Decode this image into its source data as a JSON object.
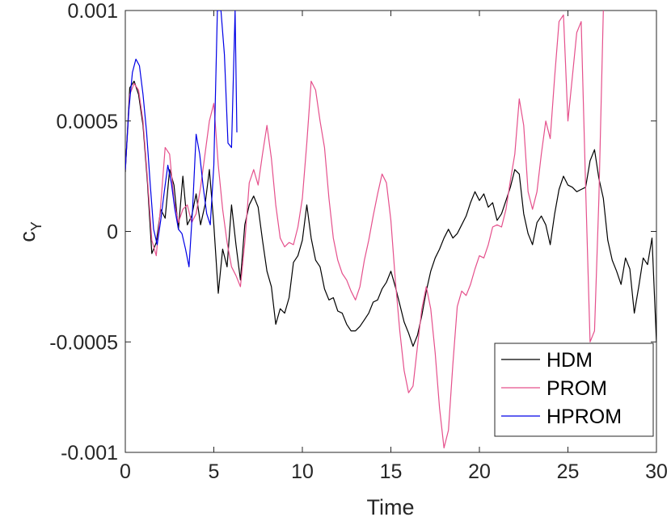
{
  "chart_data": {
    "type": "line",
    "title": "",
    "xlabel": "Time",
    "ylabel": "c",
    "ylabel_subscript": "Y",
    "xlim": [
      0,
      30
    ],
    "ylim": [
      -0.001,
      0.001
    ],
    "xticks": [
      0,
      5,
      10,
      15,
      20,
      25,
      30
    ],
    "xtick_labels": [
      "0",
      "5",
      "10",
      "15",
      "20",
      "25",
      "30"
    ],
    "yticks": [
      -0.001,
      -0.0005,
      0,
      0.0005,
      0.001
    ],
    "ytick_labels": [
      "-0.001",
      "-0.0005",
      "0",
      "0.0005",
      "0.001"
    ],
    "grid": false,
    "legend_position": "bottom-right",
    "series": [
      {
        "name": "HDM",
        "color": "#000000",
        "x": [
          0,
          0.25,
          0.5,
          0.75,
          1.0,
          1.25,
          1.5,
          1.75,
          2.0,
          2.25,
          2.5,
          2.75,
          3.0,
          3.25,
          3.5,
          3.75,
          4.0,
          4.25,
          4.5,
          4.75,
          5.0,
          5.25,
          5.5,
          5.75,
          6.0,
          6.25,
          6.5,
          6.75,
          7.0,
          7.25,
          7.5,
          7.75,
          8.0,
          8.25,
          8.5,
          8.75,
          9.0,
          9.25,
          9.5,
          9.75,
          10.0,
          10.25,
          10.5,
          10.75,
          11.0,
          11.25,
          11.5,
          11.75,
          12.0,
          12.25,
          12.5,
          12.75,
          13.0,
          13.25,
          13.5,
          13.75,
          14.0,
          14.25,
          14.5,
          14.75,
          15.0,
          15.25,
          15.5,
          15.75,
          16.0,
          16.25,
          16.5,
          16.75,
          17.0,
          17.25,
          17.5,
          17.75,
          18.0,
          18.25,
          18.5,
          18.75,
          19.0,
          19.25,
          19.5,
          19.75,
          20.0,
          20.25,
          20.5,
          20.75,
          21.0,
          21.25,
          21.5,
          21.75,
          22.0,
          22.25,
          22.5,
          22.75,
          23.0,
          23.25,
          23.5,
          23.75,
          24.0,
          24.25,
          24.5,
          24.75,
          25.0,
          25.25,
          25.5,
          25.75,
          26.0,
          26.25,
          26.5,
          26.75,
          27.0,
          27.25,
          27.5,
          27.75,
          28.0,
          28.25,
          28.5,
          28.75,
          29.0,
          29.25,
          29.5,
          29.75,
          30.0
        ],
        "y": [
          0.00027,
          0.00065,
          0.00068,
          0.00062,
          0.00048,
          0.00022,
          -0.0001,
          -5e-05,
          0.0001,
          6e-05,
          0.00028,
          0.00021,
          1e-05,
          0.00025,
          3e-05,
          7e-05,
          0.00017,
          3e-05,
          0.00012,
          0.00028,
          3e-05,
          -0.00028,
          -8e-05,
          -0.00016,
          0.00012,
          -6e-05,
          -0.00022,
          3e-05,
          0.00012,
          0.00016,
          0.00011,
          -4e-05,
          -0.00018,
          -0.00025,
          -0.00042,
          -0.00035,
          -0.00037,
          -0.0003,
          -0.00014,
          -0.00011,
          -4e-05,
          0.00012,
          -3e-05,
          -0.00013,
          -0.00016,
          -0.00026,
          -0.00031,
          -0.0003,
          -0.00036,
          -0.00037,
          -0.00042,
          -0.00045,
          -0.00045,
          -0.00043,
          -0.0004,
          -0.00037,
          -0.00032,
          -0.00031,
          -0.00026,
          -0.00023,
          -0.00018,
          -0.00025,
          -0.00033,
          -0.00041,
          -0.00046,
          -0.00052,
          -0.00047,
          -0.00038,
          -0.00027,
          -0.00018,
          -0.00012,
          -8e-05,
          -3e-05,
          1e-05,
          -3e-05,
          -1e-05,
          3e-05,
          7e-05,
          0.00013,
          0.00018,
          0.00014,
          0.00017,
          0.00011,
          0.00013,
          5e-05,
          8e-05,
          0.00014,
          0.0002,
          0.00028,
          0.00026,
          8e-05,
          -1e-05,
          -6e-05,
          4e-05,
          7e-05,
          3e-05,
          -6e-05,
          8e-05,
          0.00019,
          0.00025,
          0.00021,
          0.0002,
          0.00018,
          0.00019,
          0.0002,
          0.00032,
          0.00037,
          0.00024,
          0.00015,
          -4e-05,
          -0.00013,
          -0.00018,
          -0.00024,
          -0.00012,
          -0.00017,
          -0.00037,
          -0.00025,
          -0.00012,
          -0.00015,
          -3e-05,
          -0.0005
        ]
      },
      {
        "name": "PROM",
        "color": "#e5508c",
        "x": [
          0,
          0.25,
          0.5,
          0.75,
          1.0,
          1.25,
          1.5,
          1.75,
          2.0,
          2.25,
          2.5,
          2.75,
          3.0,
          3.25,
          3.5,
          3.75,
          4.0,
          4.25,
          4.5,
          4.75,
          5.0,
          5.25,
          5.5,
          5.75,
          6.0,
          6.25,
          6.5,
          6.75,
          7.0,
          7.25,
          7.5,
          7.75,
          8.0,
          8.25,
          8.5,
          8.75,
          9.0,
          9.25,
          9.5,
          9.75,
          10.0,
          10.25,
          10.5,
          10.75,
          11.0,
          11.25,
          11.5,
          11.75,
          12.0,
          12.25,
          12.5,
          12.75,
          13.0,
          13.25,
          13.5,
          13.75,
          14.0,
          14.25,
          14.5,
          14.75,
          15.0,
          15.25,
          15.5,
          15.75,
          16.0,
          16.25,
          16.5,
          16.75,
          17.0,
          17.25,
          17.5,
          17.75,
          18.0,
          18.25,
          18.5,
          18.75,
          19.0,
          19.25,
          19.5,
          19.75,
          20.0,
          20.25,
          20.5,
          20.75,
          21.0,
          21.25,
          21.5,
          21.75,
          22.0,
          22.25,
          22.5,
          22.75,
          23.0,
          23.25,
          23.5,
          23.75,
          24.0,
          24.25,
          24.5,
          24.75,
          25.0,
          25.25,
          25.5,
          25.75,
          26.0,
          26.25,
          26.5,
          26.75,
          27.0
        ],
        "y": [
          0.00028,
          0.00062,
          0.00067,
          0.00064,
          0.0005,
          0.00024,
          -4e-05,
          -0.00011,
          0.00012,
          0.00038,
          0.00035,
          0.00014,
          4e-05,
          0.0001,
          0.00012,
          4e-05,
          8e-05,
          0.0002,
          0.00035,
          0.0005,
          0.00058,
          0.0003,
          0.0001,
          -5e-05,
          -0.00016,
          -0.0002,
          -0.00025,
          -5e-05,
          0.00022,
          0.00028,
          0.00021,
          0.00035,
          0.00048,
          0.00033,
          0.00012,
          -3e-05,
          -7e-05,
          -5e-05,
          -6e-05,
          2e-05,
          0.00015,
          0.0004,
          0.00068,
          0.00064,
          0.0005,
          0.00038,
          0.00015,
          -3e-05,
          -0.00013,
          -0.00019,
          -0.00022,
          -0.00027,
          -0.00031,
          -0.00025,
          -0.00013,
          -4e-05,
          7e-05,
          0.00017,
          0.00026,
          0.00022,
          5e-05,
          -0.00022,
          -0.00045,
          -0.00063,
          -0.00073,
          -0.0007,
          -0.00052,
          -0.00035,
          -0.00025,
          -0.00035,
          -0.00055,
          -0.0008,
          -0.00098,
          -0.0009,
          -0.0006,
          -0.00034,
          -0.00027,
          -0.00029,
          -0.00024,
          -0.00017,
          -0.00011,
          -0.00012,
          -6e-05,
          2e-05,
          3e-05,
          2e-05,
          0.0001,
          0.00023,
          0.00035,
          0.0006,
          0.00048,
          0.00018,
          0.0001,
          0.00018,
          0.00035,
          0.0005,
          0.00042,
          0.0007,
          0.00095,
          0.00098,
          0.0005,
          0.0007,
          0.0009,
          0.00095,
          0.0002,
          -0.0005,
          -0.00045,
          0.00015,
          0.001
        ]
      },
      {
        "name": "HPROM",
        "color": "#0000e6",
        "x": [
          0,
          0.2,
          0.4,
          0.6,
          0.8,
          1.0,
          1.2,
          1.4,
          1.6,
          1.8,
          2.0,
          2.2,
          2.4,
          2.6,
          2.8,
          3.0,
          3.2,
          3.4,
          3.6,
          3.8,
          4.0,
          4.2,
          4.4,
          4.6,
          4.8,
          5.0,
          5.2,
          5.4,
          5.6,
          5.8,
          6.0,
          6.2,
          6.3
        ],
        "y": [
          0.00028,
          0.00055,
          0.00072,
          0.00078,
          0.00075,
          0.00062,
          0.00045,
          0.00022,
          1e-05,
          -6e-05,
          5e-05,
          0.00018,
          0.0003,
          0.00022,
          0.0001,
          1e-05,
          -1e-05,
          -8e-05,
          -0.00016,
          0.0001,
          0.00044,
          0.00035,
          0.0002,
          8e-05,
          3e-05,
          0.0003,
          0.001,
          0.001,
          0.0008,
          0.0004,
          0.00038,
          0.001,
          0.00045
        ]
      }
    ]
  }
}
